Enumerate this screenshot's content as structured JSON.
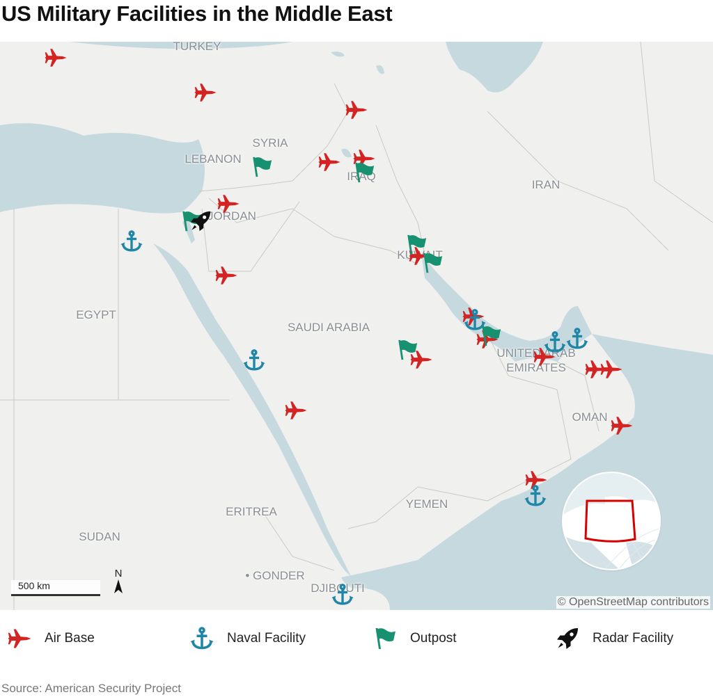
{
  "title": "US Military Facilities in the Middle East",
  "colors": {
    "air_base": "#d42323",
    "naval": "#1f86a8",
    "outpost": "#17916f",
    "radar": "#111111",
    "water": "#c6d9df",
    "land": "#f0f0ee",
    "inset_box": "#d60000"
  },
  "countries": [
    "TURKEY",
    "SYRIA",
    "LEBANON",
    "IRAQ",
    "IRAN",
    "JORDAN",
    "KUWAIT",
    "EGYPT",
    "SAUDI ARABIA",
    "UNITED ARAB EMIRATES",
    "OMAN",
    "YEMEN",
    "ERITREA",
    "SUDAN",
    "DJIBOUTI",
    "GONDER"
  ],
  "country_labels": {
    "turkey": "TURKEY",
    "syria": "SYRIA",
    "lebanon": "LEBANON",
    "iraq": "IRAQ",
    "iran": "IRAN",
    "jordan": "JORDAN",
    "kuwait": "KUWAIT",
    "egypt": "EGYPT",
    "saudi": "SAUDI ARABIA",
    "uae1": "UNITED ARAB",
    "uae2": "EMIRATES",
    "oman": "OMAN",
    "yemen": "YEMEN",
    "eritrea": "ERITREA",
    "sudan": "SUDAN",
    "djibouti": "DJIBOUTI",
    "gonder": "GONDER"
  },
  "scale_label": "500 km",
  "north_label": "N",
  "credit": "© OpenStreetMap contributors",
  "legend": [
    {
      "icon": "air-base-icon",
      "label": "Air Base"
    },
    {
      "icon": "anchor-icon",
      "label": "Naval Facility"
    },
    {
      "icon": "flag-icon",
      "label": "Outpost"
    },
    {
      "icon": "rocket-icon",
      "label": "Radar Facility"
    }
  ],
  "source": "Source: American Security Project"
}
